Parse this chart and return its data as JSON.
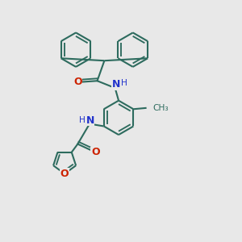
{
  "bg_color": "#e8e8e8",
  "bond_color": "#2d6b5e",
  "N_color": "#2233cc",
  "O_color": "#cc2200",
  "line_width": 1.5,
  "font_size": 9,
  "fig_size": [
    3.0,
    3.0
  ],
  "dpi": 100,
  "xlim": [
    0,
    10
  ],
  "ylim": [
    0,
    10
  ]
}
